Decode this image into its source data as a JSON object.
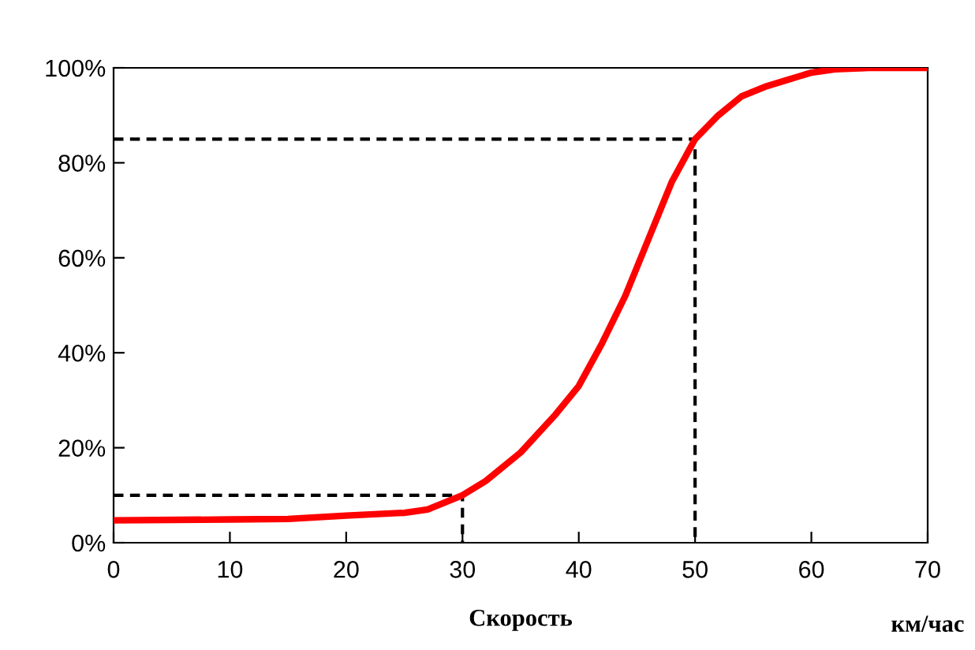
{
  "chart_data": {
    "type": "line",
    "xlabel": "Скорость",
    "annotations": [
      "км/час"
    ],
    "series": [
      {
        "color": "#ff0000",
        "x": [
          0,
          10,
          15,
          20,
          25,
          27,
          30,
          32,
          35,
          38,
          40,
          42,
          44,
          46,
          47,
          48,
          50,
          52,
          54,
          56,
          58,
          60,
          62,
          65,
          70
        ],
        "values": [
          4.7,
          4.9,
          5.0,
          5.7,
          6.3,
          7,
          10,
          13,
          19,
          27,
          33,
          42,
          52,
          64,
          70,
          76,
          85,
          90,
          94,
          96,
          97.5,
          99,
          99.7,
          100,
          100
        ]
      },
      {
        "color": "#000000",
        "line_style": "dashed",
        "x": [
          0,
          30,
          30
        ],
        "values": [
          10,
          10,
          0
        ]
      },
      {
        "color": "#000000",
        "line_style": "dashed",
        "x": [
          0,
          50,
          50
        ],
        "values": [
          85,
          85,
          0
        ]
      }
    ],
    "xlim": [
      0,
      70
    ],
    "xticks": [
      0,
      10,
      20,
      30,
      40,
      50,
      60,
      70
    ],
    "ylim": [
      0,
      100
    ],
    "yticks": [
      {
        "value": 0,
        "label": "0%"
      },
      {
        "value": 20,
        "label": "20%"
      },
      {
        "value": 40,
        "label": "40%"
      },
      {
        "value": 60,
        "label": "60%"
      },
      {
        "value": 80,
        "label": "80%"
      },
      {
        "value": 100,
        "label": "100%"
      }
    ],
    "grid": false,
    "legend": false,
    "marker": "none",
    "line_style": "solid"
  }
}
